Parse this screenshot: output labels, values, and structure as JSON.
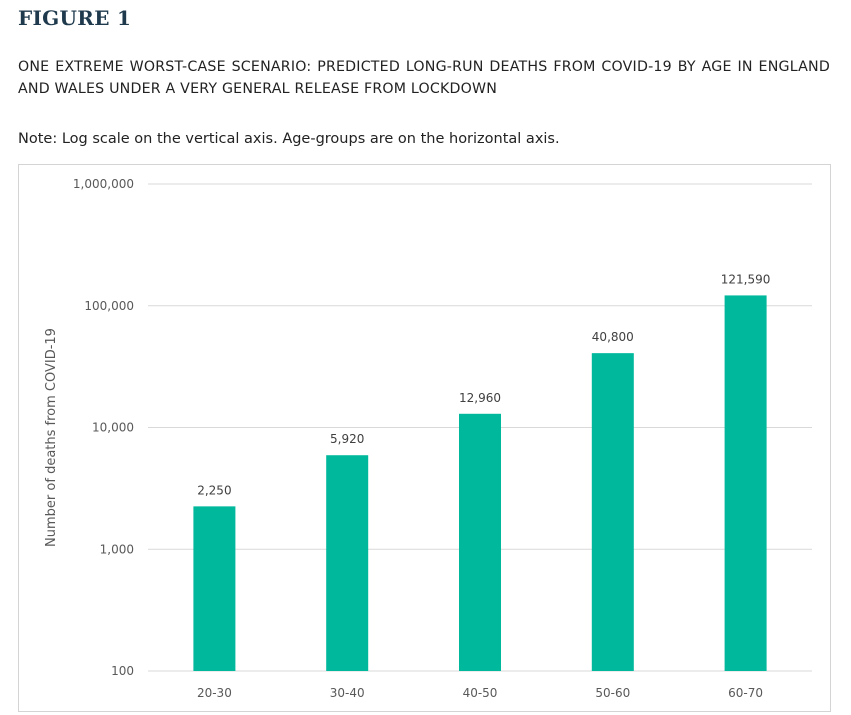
{
  "figure_label": "FIGURE 1",
  "title": "ONE EXTREME WORST-CASE SCENARIO: PREDICTED LONG-RUN DEATHS FROM COVID-19 BY AGE IN ENGLAND AND WALES UNDER A VERY GENERAL RELEASE FROM LOCKDOWN",
  "note": "Note: Log scale on the vertical axis.  Age-groups are on the horizontal axis.",
  "colors": {
    "bar": "#00b89c",
    "grid": "#d9d9d9",
    "frame": "#d4d4d4"
  },
  "chart_data": {
    "type": "bar",
    "scale": "log",
    "categories": [
      "20-30",
      "30-40",
      "40-50",
      "50-60",
      "60-70"
    ],
    "values": [
      2250,
      5920,
      12960,
      40800,
      121590
    ],
    "value_labels": [
      "2,250",
      "5,920",
      "12,960",
      "40,800",
      "121,590"
    ],
    "ylabel": "Number of deaths from COVID-19",
    "ylim": [
      100,
      1000000
    ],
    "yticks": [
      100,
      1000,
      10000,
      100000,
      1000000
    ],
    "ytick_labels": [
      "100",
      "1,000",
      "10,000",
      "100,000",
      "1,000,000"
    ],
    "grid": true,
    "legend": "none"
  }
}
